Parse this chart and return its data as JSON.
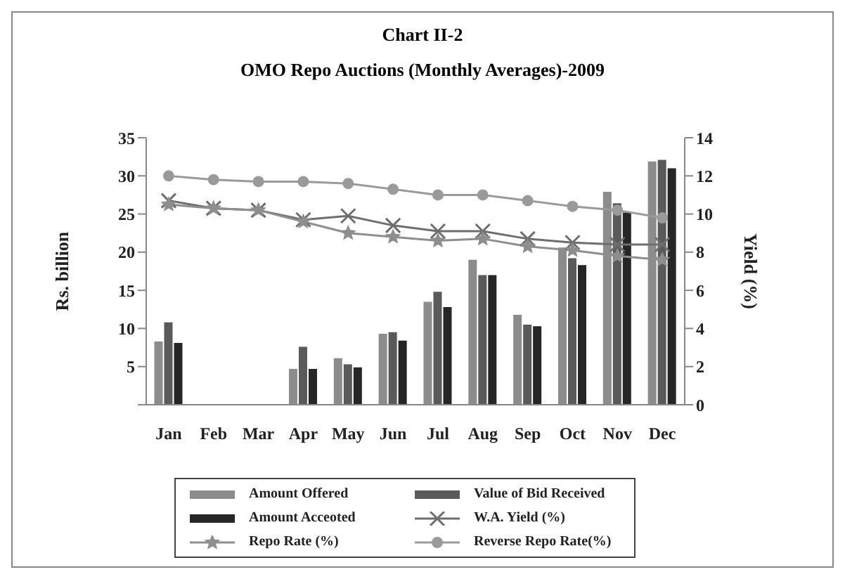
{
  "chart_data": {
    "type": "bar",
    "title": "Chart II-2",
    "subtitle": "OMO Repo Auctions (Monthly Averages)-2009",
    "ylabel": "Rs. billion",
    "y2label": "Yield (%)",
    "categories": [
      "Jan",
      "Feb",
      "Mar",
      "Apr",
      "May",
      "Jun",
      "Jul",
      "Aug",
      "Sep",
      "Oct",
      "Nov",
      "Dec"
    ],
    "series": [
      {
        "name": "Amount Offered",
        "color": "#8c8c8c",
        "values": [
          8.3,
          null,
          null,
          4.7,
          6.1,
          9.3,
          13.5,
          19.0,
          11.8,
          20.6,
          27.9,
          31.9
        ]
      },
      {
        "name": "Value of Bid Received",
        "color": "#5a5a5a",
        "values": [
          10.8,
          null,
          null,
          7.6,
          5.3,
          9.5,
          14.8,
          17.0,
          10.5,
          19.2,
          26.4,
          32.1
        ]
      },
      {
        "name": "Amount Acceoted",
        "color": "#262626",
        "values": [
          8.1,
          null,
          null,
          4.7,
          4.9,
          8.4,
          12.8,
          17.0,
          10.3,
          18.3,
          25.2,
          31.0
        ]
      },
      {
        "name": "W.A. Yield (%)",
        "type": "line",
        "axis": "y2",
        "marker": "cross",
        "color": "#6e6e6e",
        "values": [
          10.7,
          10.3,
          10.2,
          9.7,
          9.9,
          9.4,
          9.1,
          9.1,
          8.7,
          8.5,
          8.4,
          8.4
        ]
      },
      {
        "name": "Repo Rate (%)",
        "type": "line",
        "axis": "y2",
        "marker": "star",
        "color": "#8e8e8e",
        "values": [
          10.5,
          10.3,
          10.2,
          9.6,
          9.0,
          8.8,
          8.6,
          8.7,
          8.3,
          8.1,
          7.8,
          7.6
        ]
      },
      {
        "name": "Reverse Repo Rate(%)",
        "type": "line",
        "axis": "y2",
        "marker": "circle",
        "color": "#9a9a9a",
        "values": [
          12.0,
          11.8,
          11.7,
          11.7,
          11.6,
          11.3,
          11.0,
          11.0,
          10.7,
          10.4,
          10.2,
          9.8
        ]
      }
    ],
    "ylim": [
      0,
      35
    ],
    "yticks": [
      {
        "value": 0,
        "label": null
      },
      5,
      10,
      15,
      20,
      25,
      30,
      35
    ],
    "y2lim": [
      0,
      14
    ],
    "y2ticks": [
      0,
      2,
      4,
      6,
      8,
      10,
      12,
      14
    ],
    "grid": false,
    "legend": "bottom"
  }
}
